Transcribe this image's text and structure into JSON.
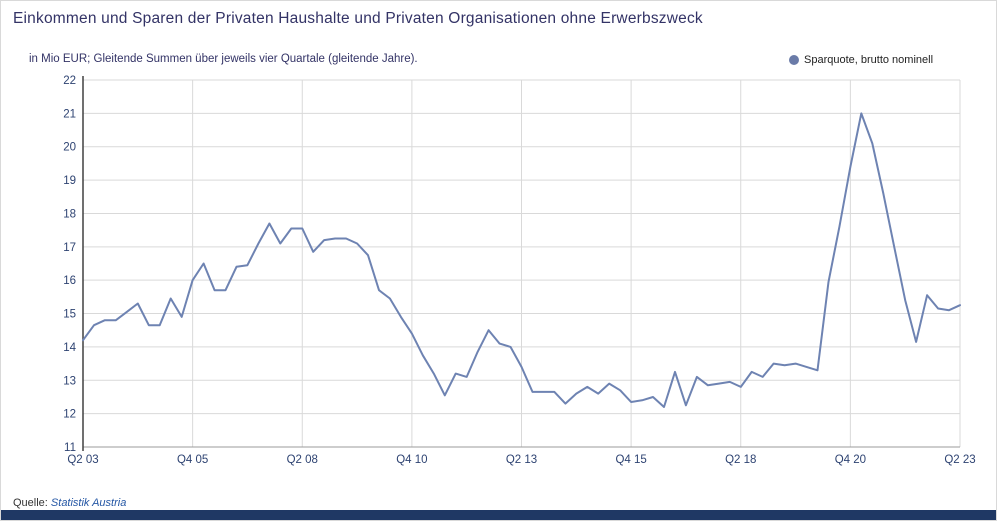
{
  "title": "Einkommen und Sparen der Privaten Haushalte und Privaten Organisationen ohne Erwerbszweck",
  "subtitle": "in Mio EUR; Gleitende Summen über jeweils vier Quartale (gleitende Jahre).",
  "legend": {
    "label": "Sparquote, brutto nominell",
    "marker": "circle-icon",
    "marker_color": "#6a7ba8"
  },
  "footer": {
    "source_label": "Quelle:",
    "source_name": "Statistik Austria"
  },
  "colors": {
    "title_text": "#333366",
    "subtitle_text": "#333366",
    "tick_text": "#2e4372",
    "grid": "#d9d9d9",
    "y_axis": "#404040",
    "x_axis": "#9b9b9b",
    "line": "#6e83b2",
    "footer_bar": "#1f3864",
    "source_link": "#2456a4"
  },
  "chart_data": {
    "type": "line",
    "title": "Einkommen und Sparen der Privaten Haushalte und Privaten Organisationen ohne Erwerbszweck",
    "subtitle": "in Mio EUR; Gleitende Summen über jeweils vier Quartale (gleitende Jahre).",
    "xlabel": "",
    "ylabel": "",
    "ylim": [
      11,
      22
    ],
    "y_ticks": [
      11,
      12,
      13,
      14,
      15,
      16,
      17,
      18,
      19,
      20,
      21,
      22
    ],
    "x_tick_labels": [
      "Q2 03",
      "Q4 05",
      "Q2 08",
      "Q4 10",
      "Q2 13",
      "Q4 15",
      "Q2 18",
      "Q4 20",
      "Q2 23"
    ],
    "x_tick_indices": [
      0,
      10,
      20,
      30,
      40,
      50,
      60,
      70,
      80
    ],
    "frequency": "quarterly",
    "start_quarter": "Q2 2003",
    "end_quarter": "Q2 2023",
    "grid": true,
    "legend_position": "top-right",
    "series": [
      {
        "name": "Sparquote, brutto nominell",
        "color": "#6e83b2",
        "values": [
          14.2,
          14.65,
          14.8,
          14.8,
          15.05,
          15.3,
          14.65,
          14.65,
          15.45,
          14.9,
          16.0,
          16.5,
          15.7,
          15.7,
          16.4,
          16.45,
          17.1,
          17.7,
          17.1,
          17.55,
          17.55,
          16.85,
          17.2,
          17.25,
          17.25,
          17.1,
          16.75,
          15.7,
          15.45,
          14.9,
          14.4,
          13.75,
          13.2,
          12.55,
          13.2,
          13.1,
          13.85,
          14.5,
          14.1,
          14.0,
          13.4,
          12.65,
          12.65,
          12.65,
          12.3,
          12.6,
          12.8,
          12.6,
          12.9,
          12.7,
          12.35,
          12.4,
          12.5,
          12.2,
          13.25,
          12.25,
          13.1,
          12.85,
          12.9,
          12.95,
          12.8,
          13.25,
          13.1,
          13.5,
          13.45,
          13.5,
          13.4,
          13.3,
          15.95,
          17.6,
          19.4,
          21.0,
          20.1,
          18.6,
          17.0,
          15.4,
          14.15,
          15.55,
          15.15,
          15.1,
          15.25
        ]
      }
    ]
  }
}
